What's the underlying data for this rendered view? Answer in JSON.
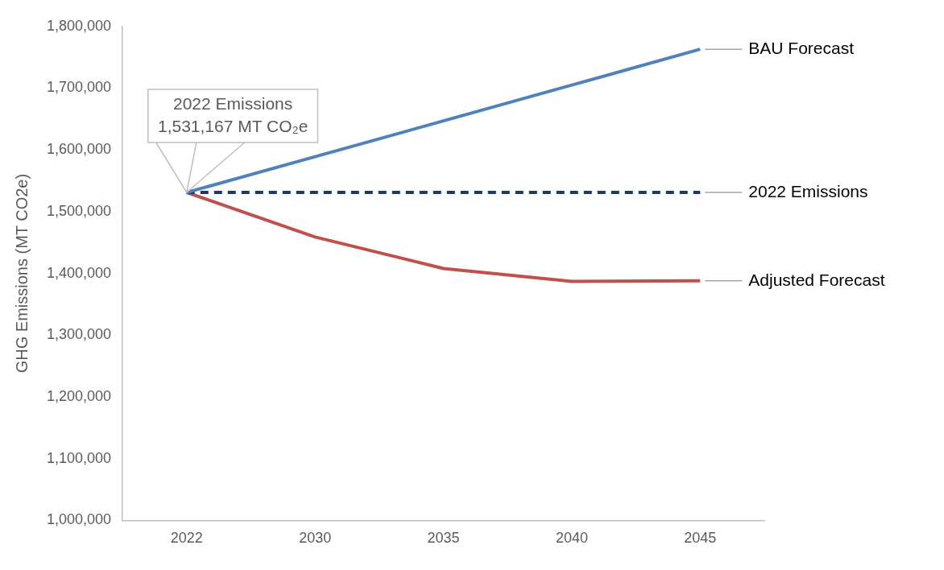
{
  "chart_data": {
    "type": "line",
    "ylabel": "GHG Emissions (MT CO2e)",
    "categories": [
      "2022",
      "2030",
      "2035",
      "2040",
      "2045"
    ],
    "series": [
      {
        "name": "BAU Forecast",
        "color": "#4f81bd",
        "values": [
          1531167,
          1589000,
          1647000,
          1705000,
          1763000
        ]
      },
      {
        "name": "2022 Emissions",
        "color": "#1f3864",
        "line_style": "dashed",
        "values": [
          1531167,
          1531167,
          1531167,
          1531167,
          1531167
        ]
      },
      {
        "name": "Adjusted Forecast",
        "color": "#c0504d",
        "values": [
          1531167,
          1459000,
          1408000,
          1387000,
          1388000
        ]
      }
    ],
    "ylim": [
      1000000,
      1800000
    ],
    "yticks": [
      {
        "value": 1000000,
        "label": "1,000,000"
      },
      {
        "value": 1100000,
        "label": "1,100,000"
      },
      {
        "value": 1200000,
        "label": "1,200,000"
      },
      {
        "value": 1300000,
        "label": "1,300,000"
      },
      {
        "value": 1400000,
        "label": "1,400,000"
      },
      {
        "value": 1500000,
        "label": "1,500,000"
      },
      {
        "value": 1600000,
        "label": "1,600,000"
      },
      {
        "value": 1700000,
        "label": "1,700,000"
      },
      {
        "value": 1800000,
        "label": "1,800,000"
      }
    ],
    "annotations": [
      {
        "text": "2022 Emissions\n1,531,167 MT CO₂e",
        "x": "2022",
        "y": 1531167
      }
    ],
    "grid": false,
    "legend": false,
    "marker": "none"
  }
}
